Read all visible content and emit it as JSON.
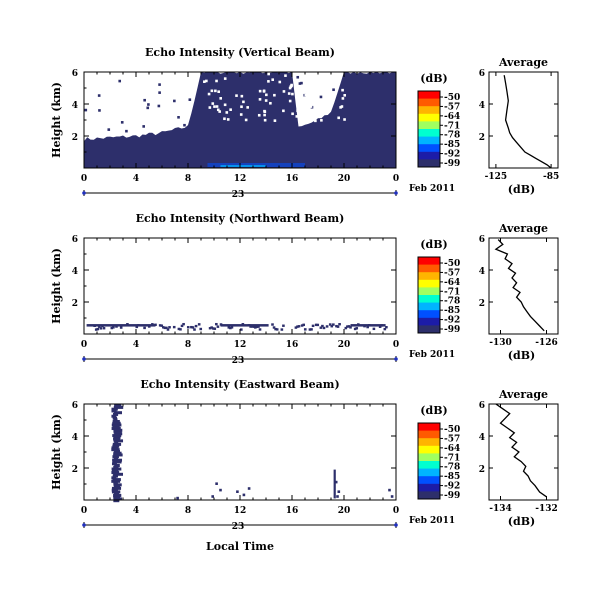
{
  "colors": {
    "echo": "#2d2f6b",
    "scale": [
      "#ff0000",
      "#ff5a00",
      "#ffb400",
      "#ffff00",
      "#a0ff60",
      "#00ffd0",
      "#00b4ff",
      "#0050ff",
      "#1c1ca8",
      "#2d2f6b"
    ]
  },
  "common": {
    "date_day": "23",
    "date_label": "Feb 2011",
    "xlabel": "Local Time",
    "ylabel": "Height (km)",
    "unit": "(dB)",
    "avg_title": "Average",
    "avg_xlabel": "(dB)"
  },
  "chart_data": [
    {
      "type": "heatmap",
      "title": "Echo Intensity (Vertical Beam)",
      "xlabel": "",
      "ylabel": "Height (km)",
      "x_ticks": [
        "0",
        "4",
        "8",
        "12",
        "16",
        "20",
        "0"
      ],
      "y_ticks": [
        "6",
        "4",
        "2"
      ],
      "xlim": [
        0,
        24
      ],
      "ylim": [
        0,
        6
      ],
      "colorbar": {
        "label": "(dB)",
        "ticks": [
          "-50",
          "-57",
          "-64",
          "-71",
          "-78",
          "-85",
          "-92",
          "-99"
        ]
      },
      "coverage_top_km": [
        [
          0,
          1.8
        ],
        [
          2,
          1.9
        ],
        [
          4,
          2.0
        ],
        [
          6,
          2.2
        ],
        [
          8,
          2.6
        ],
        [
          9,
          6.0
        ],
        [
          16,
          6.0
        ],
        [
          16.5,
          2.5
        ],
        [
          18,
          3.0
        ],
        [
          19,
          3.5
        ],
        [
          20,
          6.0
        ],
        [
          24,
          6.0
        ]
      ]
    },
    {
      "type": "line",
      "title": "Average",
      "xlabel": "(dB)",
      "ylabel": "",
      "x_ticks": [
        "-125",
        "-85"
      ],
      "y_ticks": [
        "6",
        "4",
        "2"
      ],
      "xlim": [
        -130,
        -80
      ],
      "ylim": [
        0,
        6
      ],
      "x": [
        -119,
        -118,
        -117,
        -116,
        -117,
        -118,
        -116,
        -115,
        -113,
        -110,
        -107,
        -104,
        -100,
        -96,
        -92,
        -88,
        -85
      ],
      "y": [
        5.8,
        5.3,
        4.8,
        4.2,
        3.6,
        3.0,
        2.5,
        2.2,
        1.9,
        1.6,
        1.3,
        1.0,
        0.8,
        0.6,
        0.4,
        0.2,
        0.0
      ]
    },
    {
      "type": "heatmap",
      "title": "Echo Intensity (Northward Beam)",
      "xlabel": "",
      "ylabel": "Height (km)",
      "x_ticks": [
        "0",
        "4",
        "8",
        "12",
        "16",
        "20",
        "0"
      ],
      "y_ticks": [
        "6",
        "4",
        "2"
      ],
      "xlim": [
        0,
        24
      ],
      "ylim": [
        0,
        6
      ],
      "colorbar": {
        "label": "(dB)",
        "ticks": [
          "-50",
          "-57",
          "-64",
          "-71",
          "-78",
          "-85",
          "-92",
          "-99"
        ]
      }
    },
    {
      "type": "line",
      "title": "Average",
      "xlabel": "(dB)",
      "ylabel": "",
      "x_ticks": [
        "-130",
        "-126"
      ],
      "y_ticks": [
        "6",
        "4",
        "2"
      ],
      "xlim": [
        -131,
        -125
      ],
      "ylim": [
        0,
        6
      ],
      "x": [
        -130.2,
        -129.8,
        -130.4,
        -129.4,
        -129.6,
        -129.0,
        -129.3,
        -128.7,
        -129.0,
        -128.6,
        -128.9,
        -128.3,
        -128.6,
        -128.2,
        -128.0,
        -127.7,
        -127.4,
        -127.0,
        -126.6,
        -126.2
      ],
      "y": [
        5.9,
        5.6,
        5.3,
        5.0,
        4.7,
        4.4,
        4.1,
        3.8,
        3.5,
        3.2,
        2.9,
        2.6,
        2.3,
        2.0,
        1.7,
        1.4,
        1.1,
        0.8,
        0.5,
        0.2
      ]
    },
    {
      "type": "heatmap",
      "title": "Echo Intensity (Eastward Beam)",
      "xlabel": "Local Time",
      "ylabel": "Height (km)",
      "x_ticks": [
        "0",
        "4",
        "8",
        "12",
        "16",
        "20",
        "0"
      ],
      "y_ticks": [
        "6",
        "4",
        "2"
      ],
      "xlim": [
        0,
        24
      ],
      "ylim": [
        0,
        6
      ],
      "colorbar": {
        "label": "(dB)",
        "ticks": [
          "-50",
          "-57",
          "-64",
          "-71",
          "-78",
          "-85",
          "-92",
          "-99"
        ]
      }
    },
    {
      "type": "line",
      "title": "Average",
      "xlabel": "(dB)",
      "ylabel": "",
      "x_ticks": [
        "-134",
        "-132"
      ],
      "y_ticks": [
        "6",
        "4",
        "2"
      ],
      "xlim": [
        -134.5,
        -131.5
      ],
      "ylim": [
        0,
        6
      ],
      "x": [
        -134.2,
        -133.9,
        -133.6,
        -133.8,
        -134.0,
        -133.7,
        -133.4,
        -133.6,
        -133.3,
        -133.5,
        -133.2,
        -133.4,
        -133.1,
        -132.9,
        -133.0,
        -132.8,
        -132.7,
        -132.5,
        -132.3,
        -132.0
      ],
      "y": [
        6.0,
        5.7,
        5.4,
        5.1,
        4.8,
        4.5,
        4.2,
        3.9,
        3.6,
        3.3,
        3.0,
        2.7,
        2.4,
        2.1,
        1.8,
        1.5,
        1.2,
        0.9,
        0.5,
        0.2
      ]
    }
  ]
}
